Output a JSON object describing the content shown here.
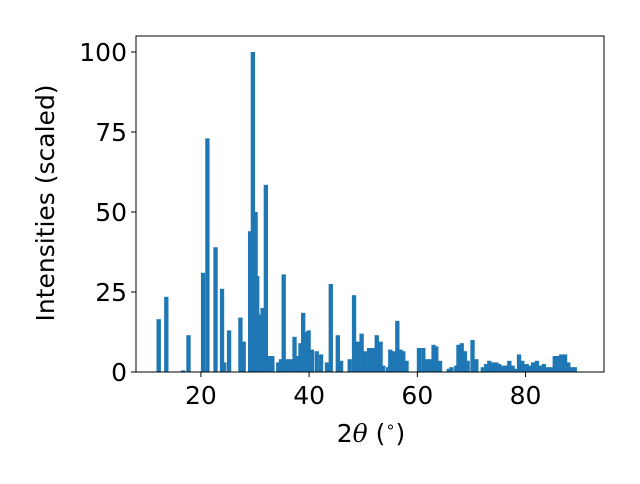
{
  "chart_data": {
    "type": "bar",
    "title": "",
    "xlabel": "2θ (°)",
    "ylabel": "Intensities (scaled)",
    "xlim": [
      8.0,
      94.5
    ],
    "ylim": [
      0,
      105
    ],
    "xticks": [
      20,
      40,
      60,
      80
    ],
    "yticks": [
      0,
      25,
      50,
      75,
      100
    ],
    "grid": false,
    "legend": null,
    "bar_color": "#1f77b4",
    "bar_width": 0.8,
    "series": [
      {
        "x": [
          12.2,
          13.6,
          16.7,
          17.7,
          20.4,
          21.2,
          22.7,
          23.9,
          24.3,
          25.2,
          27.3,
          27.9,
          29.1,
          29.6,
          30.1,
          30.4,
          30.7,
          31.4,
          32.0,
          32.6,
          33.2,
          34.3,
          34.8,
          35.3,
          35.9,
          36.6,
          37.3,
          37.9,
          38.4,
          38.9,
          39.4,
          39.9,
          40.5,
          41.4,
          42.2,
          43.3,
          44.0,
          45.3,
          45.9,
          47.5,
          48.3,
          49.0,
          49.7,
          50.3,
          51.1,
          51.8,
          52.5,
          53.2,
          53.7,
          54.6,
          55.0,
          55.6,
          56.3,
          56.9,
          57.4,
          58.0,
          60.3,
          61.1,
          61.8,
          62.4,
          63.0,
          63.5,
          64.2,
          65.8,
          66.3,
          67.2,
          67.6,
          68.2,
          68.8,
          69.3,
          70.2,
          70.9,
          72.1,
          72.7,
          73.3,
          74.0,
          74.6,
          75.1,
          75.8,
          76.4,
          77.0,
          77.6,
          78.2,
          78.8,
          79.4,
          80.2,
          80.7,
          81.4,
          82.1,
          82.7,
          83.4,
          84.0,
          84.7,
          85.4,
          86.0,
          86.6,
          87.3,
          87.9,
          88.5,
          89.1
        ],
        "values": [
          16.5,
          23.5,
          0.5,
          11.5,
          31.0,
          73.0,
          39.0,
          26.0,
          3.0,
          13.0,
          17.0,
          9.5,
          44.0,
          100.0,
          50.0,
          30.0,
          18.0,
          20.0,
          58.5,
          5.0,
          5.0,
          3.0,
          4.0,
          30.5,
          4.0,
          4.0,
          11.0,
          5.0,
          9.0,
          18.5,
          12.5,
          13.0,
          7.0,
          6.5,
          5.5,
          3.0,
          27.5,
          11.5,
          3.5,
          4.0,
          24.0,
          9.5,
          12.0,
          6.5,
          7.5,
          7.5,
          11.5,
          9.5,
          2.0,
          1.5,
          7.0,
          6.5,
          16.0,
          7.0,
          6.5,
          3.5,
          7.5,
          7.5,
          4.0,
          4.0,
          8.5,
          8.0,
          3.5,
          1.0,
          1.5,
          2.0,
          8.5,
          9.0,
          6.5,
          3.5,
          10.0,
          4.0,
          1.5,
          2.5,
          3.5,
          3.0,
          3.0,
          2.5,
          2.0,
          2.0,
          3.5,
          2.0,
          1.0,
          5.5,
          3.5,
          2.5,
          2.0,
          3.0,
          3.5,
          2.0,
          2.5,
          1.5,
          1.5,
          5.0,
          5.0,
          5.5,
          5.5,
          3.0,
          1.5,
          1.5
        ]
      }
    ]
  }
}
